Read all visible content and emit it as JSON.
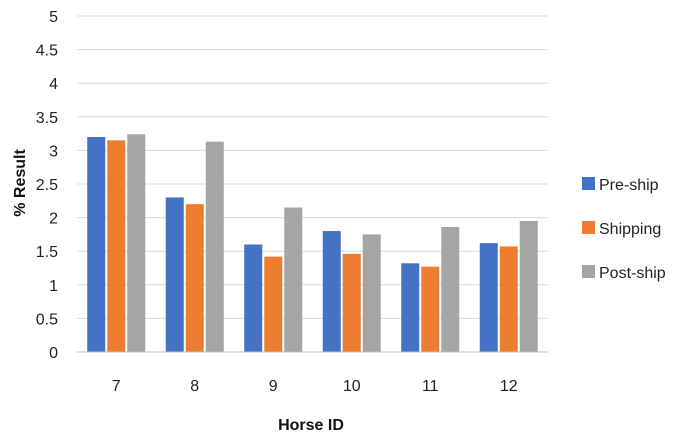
{
  "chart_data": {
    "type": "bar",
    "title": "",
    "xlabel": "Horse ID",
    "ylabel": "% Result",
    "categories": [
      "7",
      "8",
      "9",
      "10",
      "11",
      "12"
    ],
    "ylim": [
      0,
      5
    ],
    "yticks": [
      "0",
      "0.5",
      "1",
      "1.5",
      "2",
      "2.5",
      "3",
      "3.5",
      "4",
      "4.5",
      "5"
    ],
    "grid": true,
    "legend_position": "right",
    "series": [
      {
        "name": "Pre-ship",
        "color": "#4472C4",
        "values": [
          3.2,
          2.3,
          1.6,
          1.8,
          1.32,
          1.62
        ]
      },
      {
        "name": "Shipping",
        "color": "#ED7D31",
        "values": [
          3.15,
          2.2,
          1.42,
          1.46,
          1.27,
          1.57
        ]
      },
      {
        "name": "Post-ship",
        "color": "#A5A5A5",
        "values": [
          3.24,
          3.13,
          2.15,
          1.75,
          1.86,
          1.95
        ]
      }
    ]
  }
}
